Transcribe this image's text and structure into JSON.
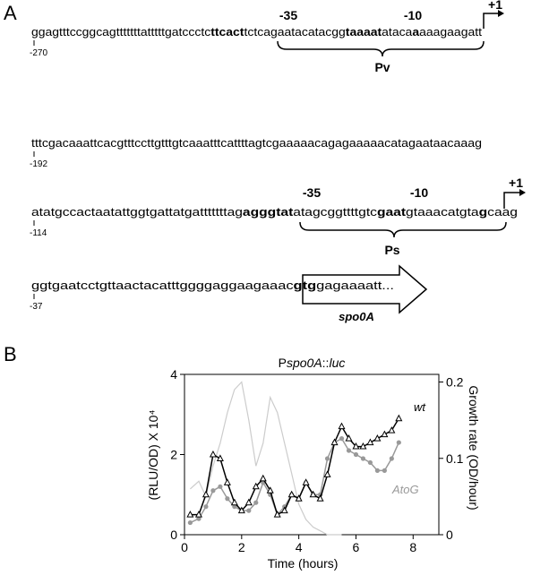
{
  "panel_a": {
    "panel_label": "A",
    "lines": [
      {
        "position": "-270",
        "segments": [
          {
            "text": "ggagtttccggcagtttttttatttttgatccctc",
            "bold": false
          },
          {
            "text": "ttcact",
            "bold": true
          },
          {
            "text": "tctcagaatacatacgg",
            "bold": false
          },
          {
            "text": "taaaat",
            "bold": true
          },
          {
            "text": "ataca",
            "bold": false
          },
          {
            "text": "a",
            "bold": true
          },
          {
            "text": "aaagaagatt",
            "bold": false
          }
        ]
      },
      {
        "position": "-192",
        "segments": [
          {
            "text": "tttcgacaaattcacgtttccttgtttgtcaaatttcattttagtcgaaaaacagagaaaaacatagaataacaaag",
            "bold": false
          }
        ]
      },
      {
        "position": "-114",
        "segments": [
          {
            "text": "atatgccactaatattggtgattatgatttttttag",
            "bold": false
          },
          {
            "text": "agggtat",
            "bold": true
          },
          {
            "text": "atagcggttttgtc",
            "bold": false
          },
          {
            "text": "gaat",
            "bold": true
          },
          {
            "text": "gtaaacatgta",
            "bold": false
          },
          {
            "text": "g",
            "bold": true
          },
          {
            "text": "caag",
            "bold": false
          }
        ]
      },
      {
        "position": "-37",
        "segments": [
          {
            "text": "ggtgaatcctgttaactacatttggggaggaagaaac",
            "bold": false
          },
          {
            "text": "gtg",
            "bold": true
          },
          {
            "text": "gagaaaatt...",
            "bold": false
          }
        ]
      }
    ],
    "promoters": [
      {
        "name": "Pv",
        "minus35": "-35",
        "minus10": "-10",
        "start": "+1"
      },
      {
        "name": "Ps",
        "minus35": "-35",
        "minus10": "-10",
        "start": "+1"
      }
    ],
    "gene": "spo0A"
  },
  "chart_data": {
    "type": "line",
    "panel_label": "B",
    "title": [
      "P",
      "spo0A",
      "::",
      "luc"
    ],
    "xlabel": "Time (hours)",
    "ylabel": "(RLU/OD) X 10⁴",
    "y2label": "Growth rate (OD/hour)",
    "x": [
      0.2,
      0.5,
      0.75,
      1.0,
      1.25,
      1.5,
      1.75,
      2.0,
      2.25,
      2.5,
      2.75,
      3.0,
      3.25,
      3.5,
      3.75,
      4.0,
      4.25,
      4.5,
      4.75,
      5.0,
      5.25,
      5.5,
      5.75,
      6.0,
      6.25,
      6.5,
      6.75,
      7.0,
      7.25,
      7.5
    ],
    "series": [
      {
        "name": "wt",
        "color": "#000000",
        "marker": "triangle",
        "values": [
          0.5,
          0.5,
          1.0,
          2.0,
          1.9,
          1.3,
          0.8,
          0.6,
          0.8,
          1.2,
          1.4,
          1.1,
          0.5,
          0.6,
          1.0,
          0.9,
          1.3,
          1.0,
          0.9,
          1.5,
          2.3,
          2.7,
          2.4,
          2.2,
          2.2,
          2.3,
          2.4,
          2.5,
          2.6,
          2.9
        ]
      },
      {
        "name": "AtoG",
        "color": "#999999",
        "marker": "circle",
        "values": [
          0.3,
          0.4,
          0.7,
          1.1,
          1.2,
          0.9,
          0.7,
          0.6,
          0.6,
          0.8,
          1.3,
          1.0,
          0.5,
          0.7,
          1.0,
          0.9,
          1.3,
          1.0,
          1.0,
          1.9,
          2.3,
          2.4,
          2.1,
          2.0,
          1.9,
          1.8,
          1.6,
          1.6,
          1.9,
          2.3
        ]
      },
      {
        "color": "#cccccc",
        "axis": "y2",
        "values": [
          0.06,
          0.07,
          0.05,
          0.09,
          0.12,
          0.16,
          0.19,
          0.2,
          0.15,
          0.09,
          0.12,
          0.18,
          0.16,
          0.12,
          0.08,
          0.04,
          0.02,
          0.01,
          0.005,
          0,
          0,
          0,
          null,
          null,
          null,
          null,
          null,
          null,
          null,
          null
        ]
      }
    ],
    "xlim": [
      0,
      8.9
    ],
    "xticks": [
      0,
      2,
      4,
      6,
      8
    ],
    "ylim": [
      0,
      4
    ],
    "yticks": [
      0,
      2,
      4
    ],
    "y2lim": [
      0,
      0.21
    ],
    "y2ticks": [
      0,
      0.1,
      0.2
    ],
    "grid": false
  }
}
